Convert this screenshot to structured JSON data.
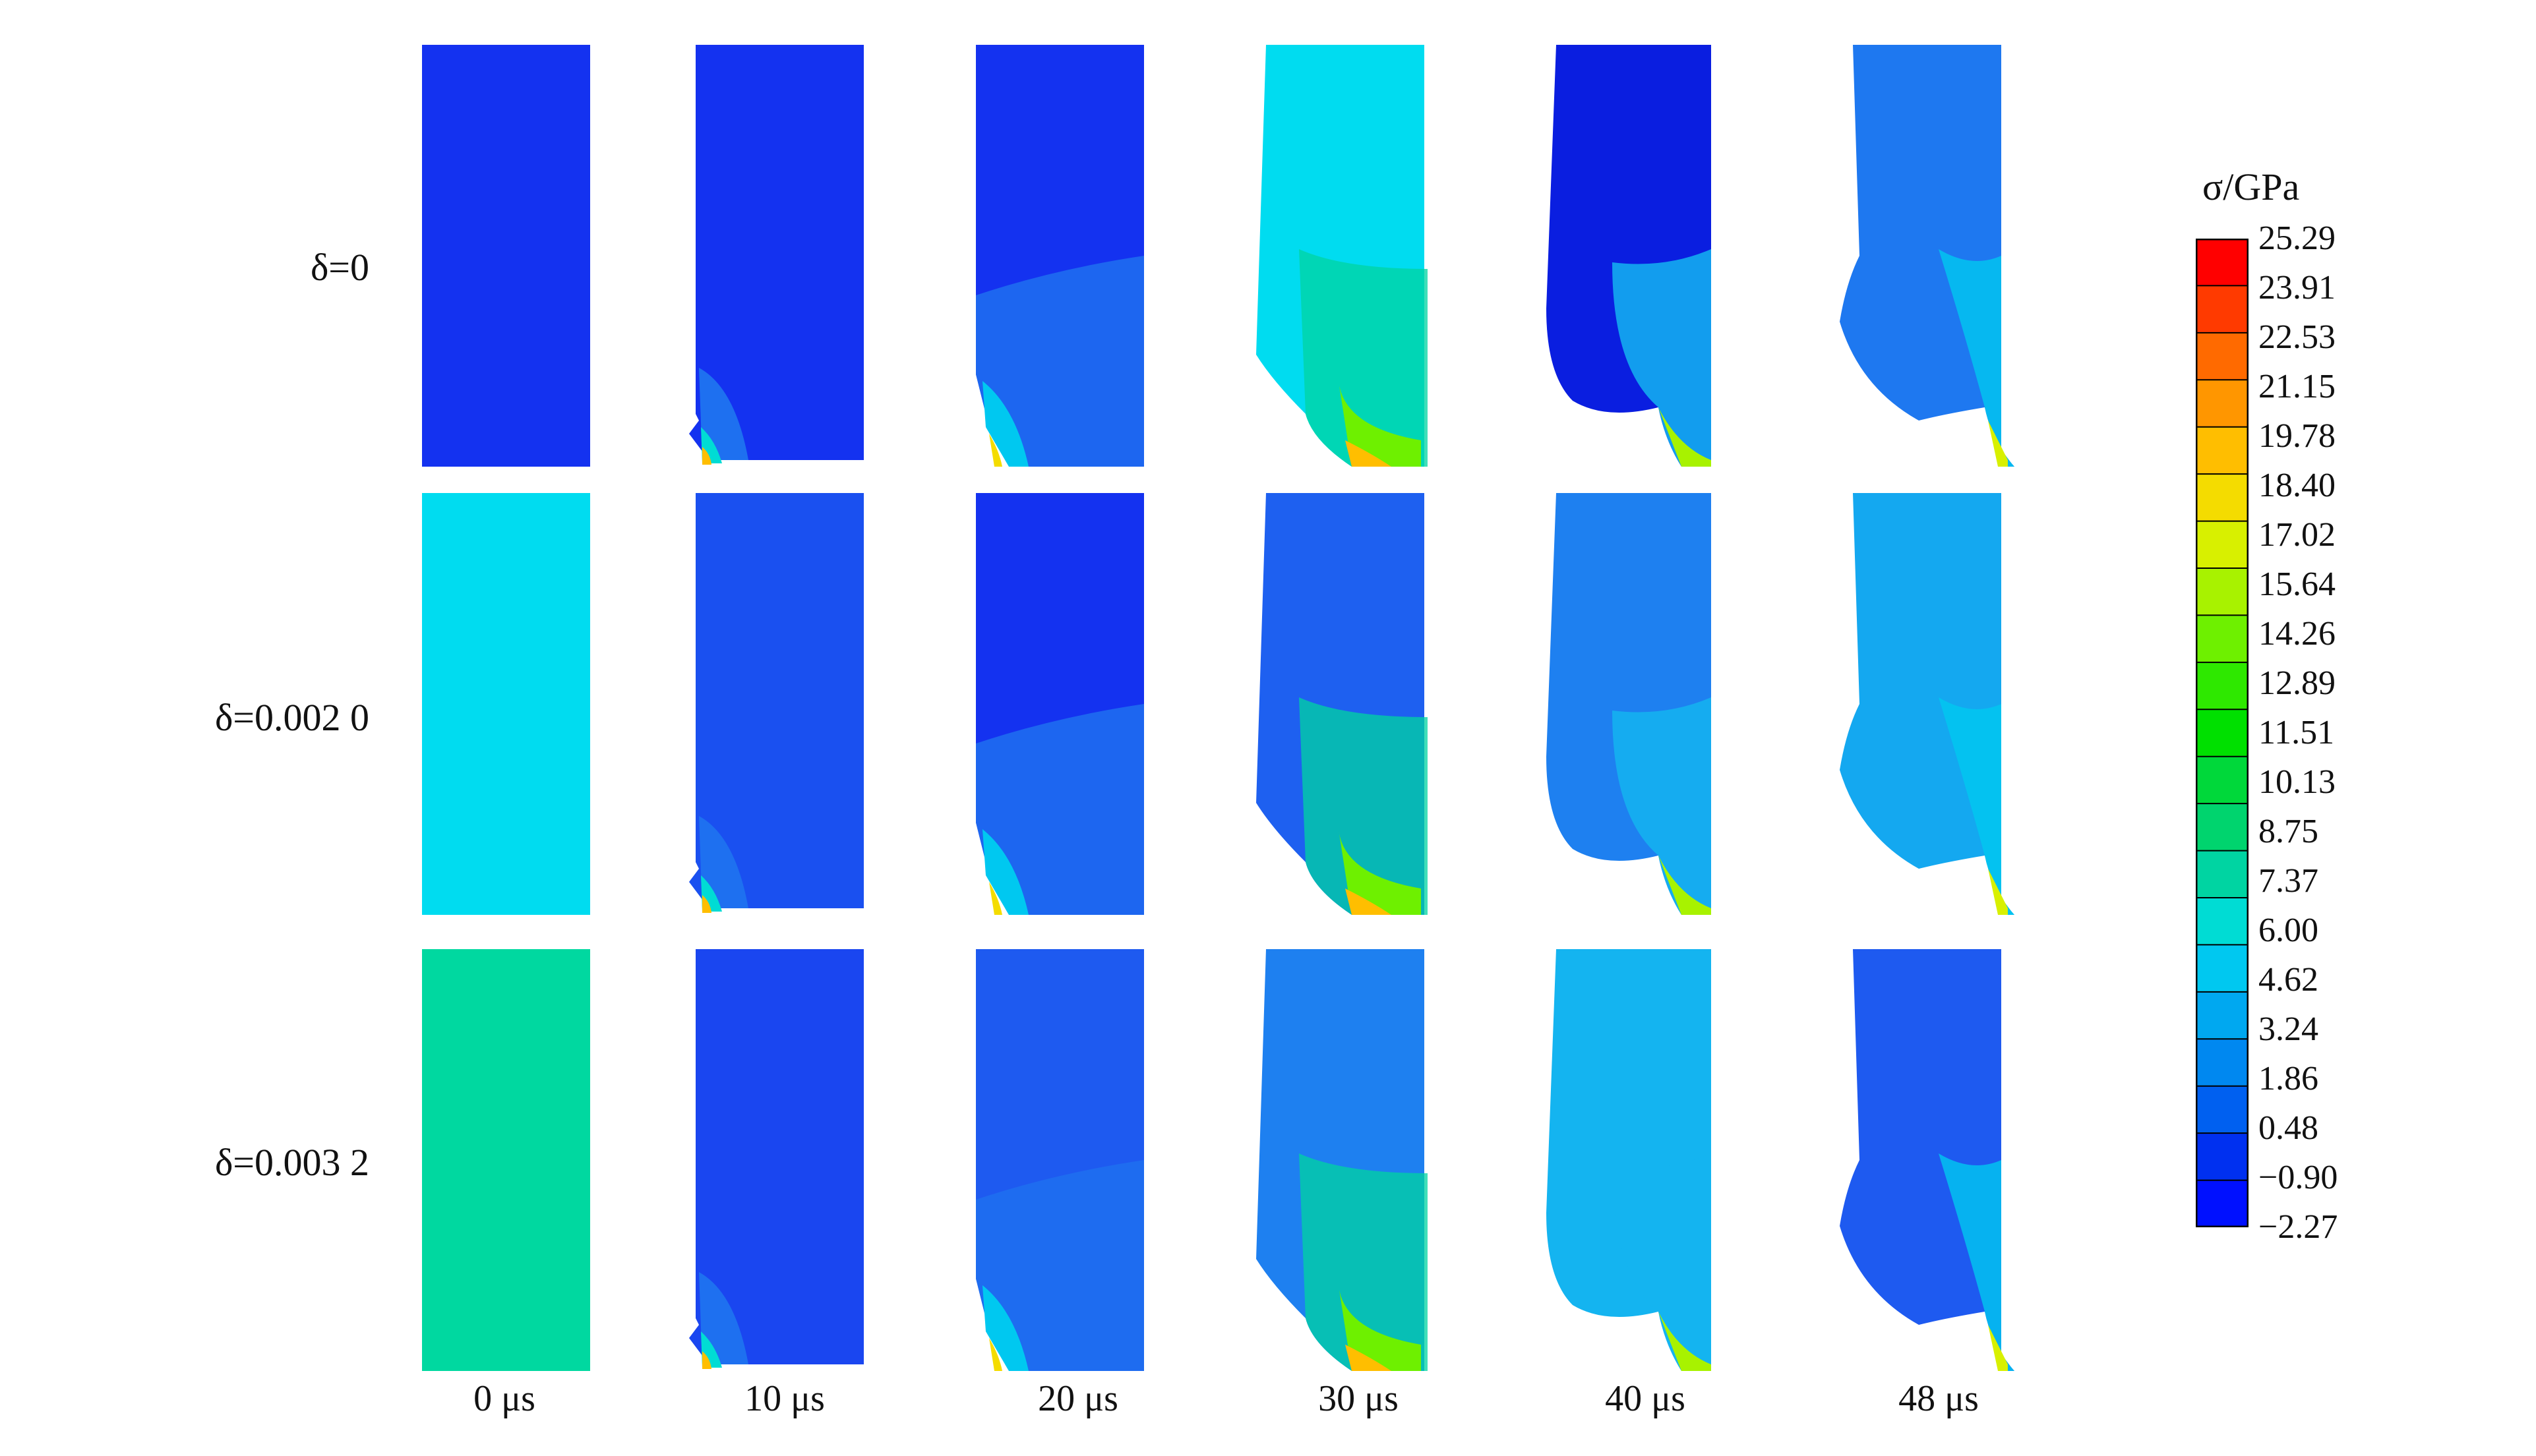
{
  "rows": [
    {
      "label": "δ=0"
    },
    {
      "label": "δ=0.002 0"
    },
    {
      "label": "δ=0.003 2"
    }
  ],
  "columns": [
    {
      "label": "0 μs"
    },
    {
      "label": "10 μs"
    },
    {
      "label": "20 μs"
    },
    {
      "label": "30 μs"
    },
    {
      "label": "40 μs"
    },
    {
      "label": "48 μs"
    }
  ],
  "colorbar": {
    "title": "σ/GPa",
    "ticks": [
      "25.29",
      "23.91",
      "22.53",
      "21.15",
      "19.78",
      "18.40",
      "17.02",
      "15.64",
      "14.26",
      "12.89",
      "11.51",
      "10.13",
      "8.75",
      "7.37",
      "6.00",
      "4.62",
      "3.24",
      "1.86",
      "0.48",
      "−0.90",
      "−2.27"
    ],
    "colors": [
      "#ff0000",
      "#ff3a00",
      "#ff6a00",
      "#ff9600",
      "#ffbe00",
      "#f4dc00",
      "#d8f000",
      "#a8f200",
      "#6ef000",
      "#2ee800",
      "#00e000",
      "#00d83a",
      "#00d46e",
      "#00d4a2",
      "#00dcd4",
      "#00c8f0",
      "#00a8f0",
      "#0088f0",
      "#0060f0",
      "#0030f0",
      "#0010ff"
    ]
  },
  "panels": [
    {
      "base": "#1432f0",
      "overlay": "none"
    },
    {
      "base": "#1432f0",
      "overlay": "tip"
    },
    {
      "base": "#1432f0",
      "overlay": "crack-mid"
    },
    {
      "base": "#00dcf0",
      "overlay": "crack-green"
    },
    {
      "base": "#0a1ee0",
      "overlay": "crack-cyan"
    },
    {
      "base": "#1e78f0",
      "overlay": "crack-late"
    },
    {
      "base": "#00dcf0",
      "overlay": "none"
    },
    {
      "base": "#1a50f0",
      "overlay": "tip"
    },
    {
      "base": "#1432f0",
      "overlay": "crack-mid"
    },
    {
      "base": "#1e60f0",
      "overlay": "crack-green"
    },
    {
      "base": "#1e80f0",
      "overlay": "crack-cyan"
    },
    {
      "base": "#14a8f0",
      "overlay": "crack-late"
    },
    {
      "base": "#00d8a0",
      "overlay": "none"
    },
    {
      "base": "#1a46f0",
      "overlay": "tip"
    },
    {
      "base": "#1e5af0",
      "overlay": "crack-mid"
    },
    {
      "base": "#1e80f0",
      "overlay": "crack-green"
    },
    {
      "base": "#14b4f0",
      "overlay": "crack-cyan"
    },
    {
      "base": "#1e5af0",
      "overlay": "crack-late"
    }
  ]
}
